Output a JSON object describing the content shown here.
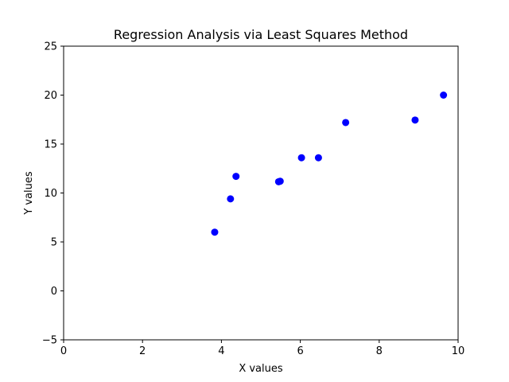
{
  "chart_data": {
    "type": "scatter",
    "title": "Regression Analysis via Least Squares Method",
    "xlabel": "X values",
    "ylabel": "Y values",
    "xlim": [
      0,
      10
    ],
    "ylim": [
      -5,
      25
    ],
    "xticks": [
      "0",
      "2",
      "4",
      "6",
      "8",
      "10"
    ],
    "yticks": [
      "−5",
      "0",
      "5",
      "10",
      "15",
      "20",
      "25"
    ],
    "grid": false,
    "marker_color": "#0000ff",
    "series": [
      {
        "x": [
          3.83,
          4.23,
          4.37,
          5.45,
          5.49,
          6.03,
          6.46,
          7.15,
          8.91,
          9.63
        ],
        "y": [
          6.0,
          9.4,
          11.7,
          11.15,
          11.2,
          13.6,
          13.6,
          17.2,
          17.45,
          20.0
        ]
      }
    ]
  }
}
